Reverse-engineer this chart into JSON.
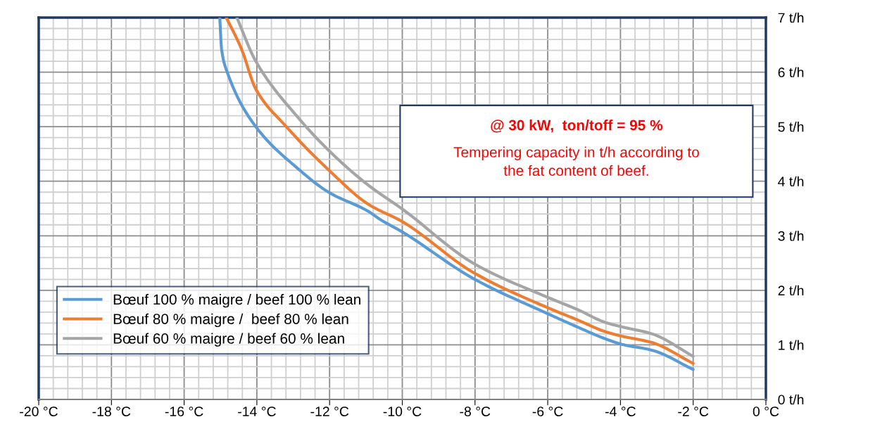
{
  "chart_data": {
    "type": "line",
    "xlim": [
      -20,
      0
    ],
    "ylim": [
      0,
      7
    ],
    "xticks": [
      {
        "value": -20,
        "label": "-20 °C"
      },
      {
        "value": -19.6,
        "label": null
      },
      {
        "value": -19.2,
        "label": null
      },
      {
        "value": -18.8,
        "label": null
      },
      {
        "value": -18.4,
        "label": null
      },
      {
        "value": -18,
        "label": "-18 °C"
      },
      {
        "value": -17.6,
        "label": null
      },
      {
        "value": -17.2,
        "label": null
      },
      {
        "value": -16.8,
        "label": null
      },
      {
        "value": -16.4,
        "label": null
      },
      {
        "value": -16,
        "label": "-16 °C"
      },
      {
        "value": -15.6,
        "label": null
      },
      {
        "value": -15.2,
        "label": null
      },
      {
        "value": -14.8,
        "label": null
      },
      {
        "value": -14.4,
        "label": null
      },
      {
        "value": -14,
        "label": "-14 °C"
      },
      {
        "value": -13.6,
        "label": null
      },
      {
        "value": -13.2,
        "label": null
      },
      {
        "value": -12.8,
        "label": null
      },
      {
        "value": -12.4,
        "label": null
      },
      {
        "value": -12,
        "label": "-12 °C"
      },
      {
        "value": -11.6,
        "label": null
      },
      {
        "value": -11.2,
        "label": null
      },
      {
        "value": -10.8,
        "label": null
      },
      {
        "value": -10.4,
        "label": null
      },
      {
        "value": -10,
        "label": "-10 °C"
      },
      {
        "value": -9.6,
        "label": null
      },
      {
        "value": -9.2,
        "label": null
      },
      {
        "value": -8.8,
        "label": null
      },
      {
        "value": -8.4,
        "label": null
      },
      {
        "value": -8,
        "label": "-8 °C"
      },
      {
        "value": -7.6,
        "label": null
      },
      {
        "value": -7.2,
        "label": null
      },
      {
        "value": -6.8,
        "label": null
      },
      {
        "value": -6.4,
        "label": null
      },
      {
        "value": -6,
        "label": "-6 °C"
      },
      {
        "value": -5.6,
        "label": null
      },
      {
        "value": -5.2,
        "label": null
      },
      {
        "value": -4.8,
        "label": null
      },
      {
        "value": -4.4,
        "label": null
      },
      {
        "value": -4,
        "label": "-4 °C"
      },
      {
        "value": -3.6,
        "label": null
      },
      {
        "value": -3.2,
        "label": null
      },
      {
        "value": -2.8,
        "label": null
      },
      {
        "value": -2.4,
        "label": null
      },
      {
        "value": -2,
        "label": "-2 °C"
      },
      {
        "value": -1.6,
        "label": null
      },
      {
        "value": -1.2,
        "label": null
      },
      {
        "value": -0.8,
        "label": null
      },
      {
        "value": -0.4,
        "label": null
      },
      {
        "value": 0,
        "label": "0 °C"
      }
    ],
    "yticks": [
      {
        "value": 0,
        "label": "0 t/h"
      },
      {
        "value": 0.2,
        "label": null
      },
      {
        "value": 0.4,
        "label": null
      },
      {
        "value": 0.6,
        "label": null
      },
      {
        "value": 0.8,
        "label": null
      },
      {
        "value": 1,
        "label": "1 t/h"
      },
      {
        "value": 1.2,
        "label": null
      },
      {
        "value": 1.4,
        "label": null
      },
      {
        "value": 1.6,
        "label": null
      },
      {
        "value": 1.8,
        "label": null
      },
      {
        "value": 2,
        "label": "2 t/h"
      },
      {
        "value": 2.2,
        "label": null
      },
      {
        "value": 2.4,
        "label": null
      },
      {
        "value": 2.6,
        "label": null
      },
      {
        "value": 2.8,
        "label": null
      },
      {
        "value": 3,
        "label": "3 t/h"
      },
      {
        "value": 3.2,
        "label": null
      },
      {
        "value": 3.4,
        "label": null
      },
      {
        "value": 3.6,
        "label": null
      },
      {
        "value": 3.8,
        "label": null
      },
      {
        "value": 4,
        "label": "4 t/h"
      },
      {
        "value": 4.2,
        "label": null
      },
      {
        "value": 4.4,
        "label": null
      },
      {
        "value": 4.6,
        "label": null
      },
      {
        "value": 4.8,
        "label": null
      },
      {
        "value": 5,
        "label": "5 t/h"
      },
      {
        "value": 5.2,
        "label": null
      },
      {
        "value": 5.4,
        "label": null
      },
      {
        "value": 5.6,
        "label": null
      },
      {
        "value": 5.8,
        "label": null
      },
      {
        "value": 6,
        "label": "6 t/h"
      },
      {
        "value": 6.2,
        "label": null
      },
      {
        "value": 6.4,
        "label": null
      },
      {
        "value": 6.6,
        "label": null
      },
      {
        "value": 6.8,
        "label": null
      },
      {
        "value": 7,
        "label": "7 t/h"
      }
    ],
    "grid": true,
    "legend": "bottom left",
    "marker": "none",
    "line_style": "solid",
    "annotations": [
      "@ 30 kW,  ton/toff = 95 %",
      "Tempering capacity in t/h according to\nthe fat content of beef."
    ],
    "series": [
      {
        "name": "Bœuf 100 % maigre / beef 100 % lean",
        "color": "#5b9bd5",
        "x": [
          -15.02,
          -14.97,
          -14.81,
          -14.03,
          -12.87,
          -12.03,
          -10.94,
          -10.61,
          -10.0,
          -8.03,
          -5.96,
          -5.19,
          -4.41,
          -3.96,
          -3.12,
          -2.0
        ],
        "values": [
          7.0,
          6.42,
          5.99,
          5.0,
          4.23,
          3.8,
          3.45,
          3.3,
          3.07,
          2.21,
          1.56,
          1.33,
          1.11,
          1.01,
          0.9,
          0.55
        ]
      },
      {
        "name": "Bœuf 80 % maigre /  beef 80 % lean",
        "color": "#ed7d31",
        "x": [
          -14.84,
          -14.42,
          -14.03,
          -13.19,
          -12.03,
          -10.94,
          -10.0,
          -8.03,
          -5.96,
          -5.19,
          -4.41,
          -3.96,
          -3.12,
          -2.0
        ],
        "values": [
          7.0,
          6.42,
          5.69,
          5.0,
          4.21,
          3.58,
          3.26,
          2.32,
          1.67,
          1.46,
          1.24,
          1.16,
          1.04,
          0.66
        ]
      },
      {
        "name": "Bœuf 60 % maigre / beef 60 % lean",
        "color": "#a5a5a5",
        "x": [
          -14.55,
          -14.03,
          -12.87,
          -11.97,
          -10.94,
          -10.0,
          -8.03,
          -5.96,
          -5.19,
          -4.41,
          -3.96,
          -3.12,
          -2.0
        ],
        "values": [
          7.0,
          6.2,
          5.17,
          4.53,
          3.93,
          3.49,
          2.49,
          1.86,
          1.65,
          1.41,
          1.33,
          1.2,
          0.79
        ]
      }
    ]
  }
}
